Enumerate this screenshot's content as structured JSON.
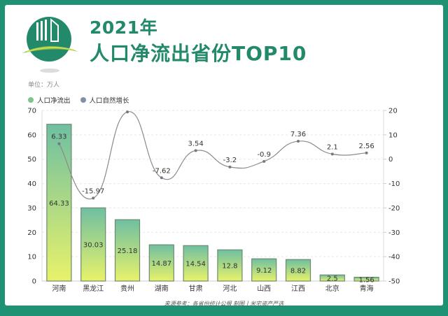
{
  "header": {
    "title_line1": "2021年",
    "title_line2": "人口净流出省份TOP10"
  },
  "unit_label": "单位：万人",
  "legend": [
    {
      "label": "人口净流出",
      "color": "#7dc48f"
    },
    {
      "label": "人口自然增长",
      "color": "#8390a4"
    }
  ],
  "source": "来源参考：各省份统计公报 制图丨米宅资产严选",
  "colors": {
    "frame": "#1f9274",
    "title": "#23896b",
    "bar_top": "#6fbfa2",
    "bar_bottom": "#e8f26a",
    "bar_stroke": "#6d8a70",
    "line": "#8a8a8a"
  },
  "chart_data": {
    "type": "bar",
    "title": "2021年 人口净流出省份TOP10",
    "ylabel": "单位：万人",
    "categories": [
      "河南",
      "黑龙江",
      "贵州",
      "湖南",
      "甘肃",
      "河北",
      "山西",
      "江西",
      "北京",
      "青海"
    ],
    "series": [
      {
        "name": "人口净流出",
        "type": "bar",
        "axis": "left",
        "values": [
          64.33,
          30.03,
          25.18,
          14.87,
          14.54,
          12.8,
          9.12,
          8.82,
          2.5,
          1.56
        ],
        "labels": [
          "64.33",
          "30.03",
          "25.18",
          "14.87",
          "14.54",
          "12.8",
          "9.12",
          "8.82",
          "2.5",
          "1.56"
        ]
      },
      {
        "name": "人口自然增长",
        "type": "line",
        "axis": "right",
        "smooth": true,
        "values": [
          6.33,
          -15.97,
          19.4,
          -7.62,
          3.54,
          -3.2,
          -0.9,
          7.36,
          2.1,
          2.56
        ],
        "labels": [
          "6.33",
          "-15.97",
          "",
          "-7.62",
          "3.54",
          "-3.2",
          "-0.9",
          "7.36",
          "2.1",
          "2.56"
        ]
      }
    ],
    "y_left": {
      "min": 0,
      "max": 70,
      "ticks": [
        0,
        10,
        20,
        30,
        40,
        50,
        60,
        70
      ]
    },
    "y_right": {
      "min": -50,
      "max": 20,
      "ticks": [
        -50,
        -40,
        -30,
        -20,
        -10,
        0,
        10,
        20
      ]
    },
    "grid": true,
    "legend_position": "top-left"
  }
}
